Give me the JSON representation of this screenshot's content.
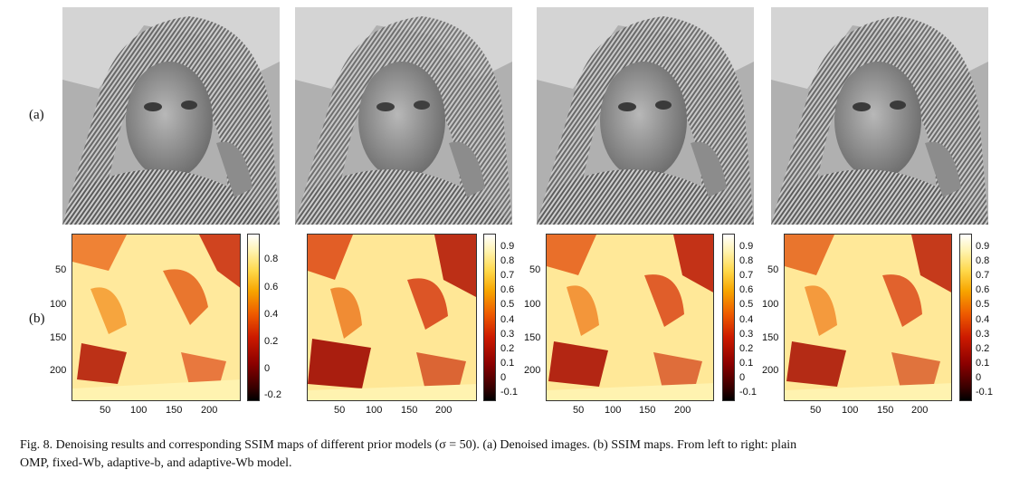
{
  "row_labels": {
    "a": "(a)",
    "b": "(b)"
  },
  "panels": [
    {
      "id": "plain-omp",
      "cbar_ticks": [
        "0.8",
        "0.6",
        "0.4",
        "0.2",
        "0",
        "-0.2"
      ]
    },
    {
      "id": "fixed-wb",
      "cbar_ticks": [
        "0.9",
        "0.8",
        "0.7",
        "0.6",
        "0.5",
        "0.4",
        "0.3",
        "0.2",
        "0.1",
        "0",
        "-0.1"
      ]
    },
    {
      "id": "adaptive-b",
      "cbar_ticks": [
        "0.9",
        "0.8",
        "0.7",
        "0.6",
        "0.5",
        "0.4",
        "0.3",
        "0.2",
        "0.1",
        "0",
        "-0.1"
      ]
    },
    {
      "id": "adaptive-wb",
      "cbar_ticks": [
        "0.9",
        "0.8",
        "0.7",
        "0.6",
        "0.5",
        "0.4",
        "0.3",
        "0.2",
        "0.1",
        "0",
        "-0.1"
      ]
    }
  ],
  "axis": {
    "x_ticks": [
      "50",
      "100",
      "150",
      "200"
    ],
    "y_ticks": [
      "50",
      "100",
      "150",
      "200"
    ]
  },
  "caption": {
    "line1": "Fig. 8.   Denoising results and corresponding SSIM maps of different prior models (σ = 50). (a) Denoised images. (b) SSIM maps. From left to right: plain",
    "line2": "OMP, fixed-Wb, adaptive-b, and adaptive-Wb model."
  },
  "colors": {
    "photo_gray": "#9a9a9a",
    "map_low": "#8b0000",
    "map_high": "#fffbe0"
  }
}
